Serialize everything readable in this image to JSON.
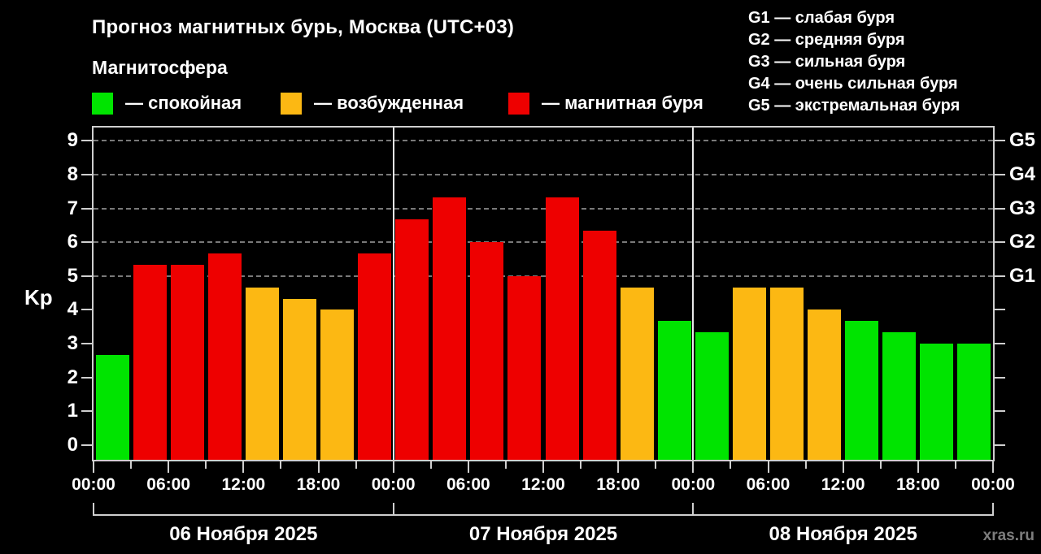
{
  "title": "Прогноз магнитных бурь, Москва (UTC+03)",
  "subtitle": "Магнитосфера",
  "watermark": "xras.ru",
  "legend": {
    "items": [
      {
        "key": "quiet",
        "label": "— спокойная",
        "color": "#00e400"
      },
      {
        "key": "active",
        "label": "— возбужденная",
        "color": "#fcb813"
      },
      {
        "key": "storm",
        "label": "— магнитная буря",
        "color": "#ee0000"
      }
    ]
  },
  "g_legend": [
    "G1 — слабая буря",
    "G2 — средняя буря",
    "G3 — сильная буря",
    "G4 — очень сильная буря",
    "G5 — экстремальная буря"
  ],
  "chart_data": {
    "type": "bar",
    "title": "Прогноз магнитных бурь, Москва (UTC+03)",
    "ylabel": "Kp",
    "ylim": [
      0,
      9
    ],
    "yticks": [
      0,
      1,
      2,
      3,
      4,
      5,
      6,
      7,
      8,
      9
    ],
    "grid_levels_kp": [
      5,
      6,
      7,
      8,
      9
    ],
    "right_axis": [
      {
        "kp": 5,
        "label": "G1"
      },
      {
        "kp": 6,
        "label": "G2"
      },
      {
        "kp": 7,
        "label": "G3"
      },
      {
        "kp": 8,
        "label": "G4"
      },
      {
        "kp": 9,
        "label": "G5"
      }
    ],
    "time_tick_labels": [
      "00:00",
      "06:00",
      "12:00",
      "18:00"
    ],
    "interval_hours": 3,
    "days": [
      {
        "date": "06 Ноября 2025",
        "kp_values": [
          2.67,
          5.33,
          5.33,
          5.67,
          4.67,
          4.33,
          4.0,
          5.67
        ]
      },
      {
        "date": "07 Ноября 2025",
        "kp_values": [
          6.67,
          7.33,
          6.0,
          5.0,
          7.33,
          6.33,
          4.67,
          3.67
        ]
      },
      {
        "date": "08 Ноября 2025",
        "kp_values": [
          3.33,
          4.67,
          4.67,
          4.0,
          3.67,
          3.33,
          3.0,
          3.0
        ]
      }
    ],
    "state_colors": {
      "quiet": "#00e400",
      "active": "#fcb813",
      "storm": "#ee0000"
    },
    "state_rules": {
      "active_min_kp": 4,
      "storm_min_kp": 5
    },
    "axis_color": "#cfcfcf",
    "grid": true,
    "legend_position": "top-left"
  }
}
